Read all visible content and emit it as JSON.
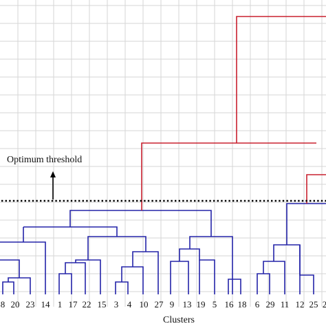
{
  "annotation": {
    "text": "Optimum threshold"
  },
  "axis": {
    "xlabel": "Clusters"
  },
  "leaves": [
    "8",
    "20",
    "23",
    "14",
    "1",
    "17",
    "22",
    "15",
    "3",
    "4",
    "10",
    "27",
    "9",
    "13",
    "19",
    "5",
    "16",
    "18",
    "6",
    "29",
    "11",
    "12",
    "25",
    "2"
  ],
  "colors": {
    "below_threshold": "#2323a8",
    "above_threshold": "#c8202e",
    "threshold_line": "#000000",
    "grid": "#d6d6d6"
  }
}
